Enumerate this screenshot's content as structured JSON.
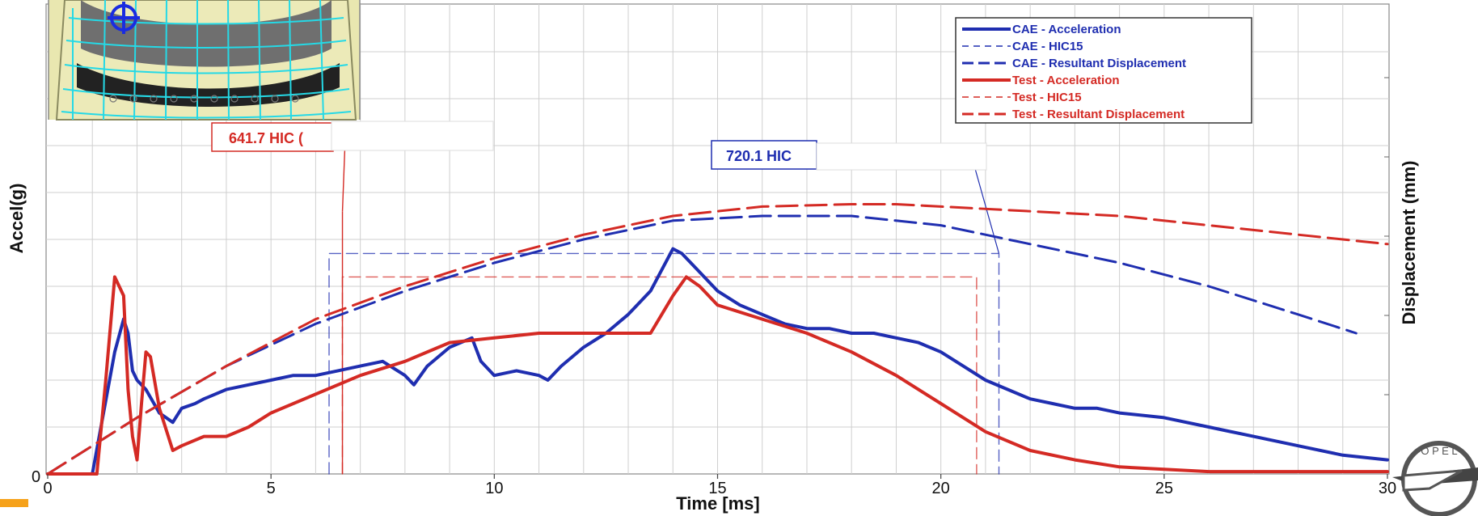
{
  "chart_data": {
    "type": "line",
    "xlabel": "Time [ms]",
    "ylabel_left": "Accel(g)",
    "ylabel_right": "Displacement (mm)",
    "xlim": [
      0,
      30
    ],
    "x_ticks": [
      "0",
      "5",
      "10",
      "15",
      "20",
      "25",
      "30"
    ],
    "y_tick_left": "0",
    "grid": true,
    "legend_position": "top-right",
    "colors": {
      "cae": "#1f2eb0",
      "test": "#d42a24"
    },
    "annotations": [
      {
        "text": "641.7 HIC (",
        "series": "Test",
        "color": "#d42a24"
      },
      {
        "text": "720.1 HIC",
        "series": "CAE",
        "color": "#1f2eb0"
      }
    ],
    "hic_windows": [
      {
        "series": "CAE - HIC15",
        "t1": 6.3,
        "t2": 21.3,
        "level": 0.47
      },
      {
        "series": "Test - HIC15",
        "t1": 6.6,
        "t2": 20.8,
        "level": 0.42
      }
    ],
    "series": [
      {
        "name": "CAE - Acceleration",
        "color": "#1f2eb0",
        "style": "solid",
        "x": [
          0,
          1.0,
          1.5,
          1.7,
          1.8,
          1.9,
          2.0,
          2.2,
          2.5,
          2.8,
          3.0,
          3.3,
          3.5,
          4.0,
          4.5,
          5.0,
          5.5,
          6.0,
          6.5,
          7.0,
          7.5,
          8.0,
          8.2,
          8.5,
          9.0,
          9.5,
          9.7,
          10.0,
          10.5,
          11.0,
          11.2,
          11.5,
          12.0,
          12.5,
          13.0,
          13.5,
          14.0,
          14.2,
          14.5,
          15.0,
          15.5,
          16.0,
          16.5,
          17.0,
          17.5,
          18.0,
          18.5,
          19.0,
          19.5,
          20.0,
          20.5,
          21.0,
          21.5,
          22.0,
          22.5,
          23.0,
          23.5,
          24.0,
          25.0,
          26.0,
          27.0,
          28.0,
          29.0,
          30.0
        ],
        "y": [
          0.0,
          0.0,
          0.26,
          0.33,
          0.3,
          0.22,
          0.2,
          0.18,
          0.13,
          0.11,
          0.14,
          0.15,
          0.16,
          0.18,
          0.19,
          0.2,
          0.21,
          0.21,
          0.22,
          0.23,
          0.24,
          0.21,
          0.19,
          0.23,
          0.27,
          0.29,
          0.24,
          0.21,
          0.22,
          0.21,
          0.2,
          0.23,
          0.27,
          0.3,
          0.34,
          0.39,
          0.48,
          0.47,
          0.44,
          0.39,
          0.36,
          0.34,
          0.32,
          0.31,
          0.31,
          0.3,
          0.3,
          0.29,
          0.28,
          0.26,
          0.23,
          0.2,
          0.18,
          0.16,
          0.15,
          0.14,
          0.14,
          0.13,
          0.12,
          0.1,
          0.08,
          0.06,
          0.04,
          0.03
        ]
      },
      {
        "name": "CAE - HIC15",
        "color": "#1f2eb0",
        "style": "thin-dash",
        "x": [
          6.3,
          6.3,
          21.3,
          21.3
        ],
        "y": [
          0.0,
          0.47,
          0.47,
          0.0
        ]
      },
      {
        "name": "CAE - Resultant Displacement",
        "color": "#1f2eb0",
        "style": "long-dash",
        "x": [
          0,
          2,
          4,
          6,
          8,
          10,
          12,
          14,
          16,
          18,
          20,
          22,
          24,
          26,
          28,
          29.3
        ],
        "y": [
          0.0,
          0.12,
          0.23,
          0.32,
          0.39,
          0.45,
          0.5,
          0.54,
          0.55,
          0.55,
          0.53,
          0.49,
          0.45,
          0.4,
          0.34,
          0.3
        ]
      },
      {
        "name": "Test - Acceleration",
        "color": "#d42a24",
        "style": "solid",
        "x": [
          0,
          1.1,
          1.3,
          1.5,
          1.7,
          1.8,
          1.9,
          2.0,
          2.1,
          2.2,
          2.3,
          2.5,
          2.8,
          3.0,
          3.5,
          4.0,
          4.5,
          5.0,
          6.0,
          7.0,
          8.0,
          9.0,
          10.0,
          11.0,
          12.0,
          13.0,
          13.5,
          14.0,
          14.3,
          14.6,
          15.0,
          16.0,
          17.0,
          18.0,
          19.0,
          20.0,
          21.0,
          22.0,
          23.0,
          24.0,
          25.0,
          26.0,
          27.0,
          28.0,
          29.0,
          30.0
        ],
        "y": [
          0.0,
          0.0,
          0.2,
          0.42,
          0.38,
          0.18,
          0.08,
          0.03,
          0.15,
          0.26,
          0.25,
          0.14,
          0.05,
          0.06,
          0.08,
          0.08,
          0.1,
          0.13,
          0.17,
          0.21,
          0.24,
          0.28,
          0.29,
          0.3,
          0.3,
          0.3,
          0.3,
          0.38,
          0.42,
          0.4,
          0.36,
          0.33,
          0.3,
          0.26,
          0.21,
          0.15,
          0.09,
          0.05,
          0.03,
          0.015,
          0.01,
          0.005,
          0.005,
          0.005,
          0.005,
          0.005
        ]
      },
      {
        "name": "Test - HIC15",
        "color": "#d42a24",
        "style": "thin-dash",
        "x": [
          6.6,
          6.6,
          20.8,
          20.8
        ],
        "y": [
          0.0,
          0.42,
          0.42,
          0.0
        ]
      },
      {
        "name": "Test - Resultant Displacement",
        "color": "#d42a24",
        "style": "long-dash",
        "x": [
          0,
          2,
          4,
          6,
          8,
          10,
          12,
          14,
          16,
          18,
          19,
          20,
          22,
          24,
          26,
          28,
          30
        ],
        "y": [
          0.0,
          0.12,
          0.23,
          0.33,
          0.4,
          0.46,
          0.51,
          0.55,
          0.57,
          0.575,
          0.575,
          0.57,
          0.56,
          0.55,
          0.53,
          0.51,
          0.49
        ]
      }
    ]
  }
}
